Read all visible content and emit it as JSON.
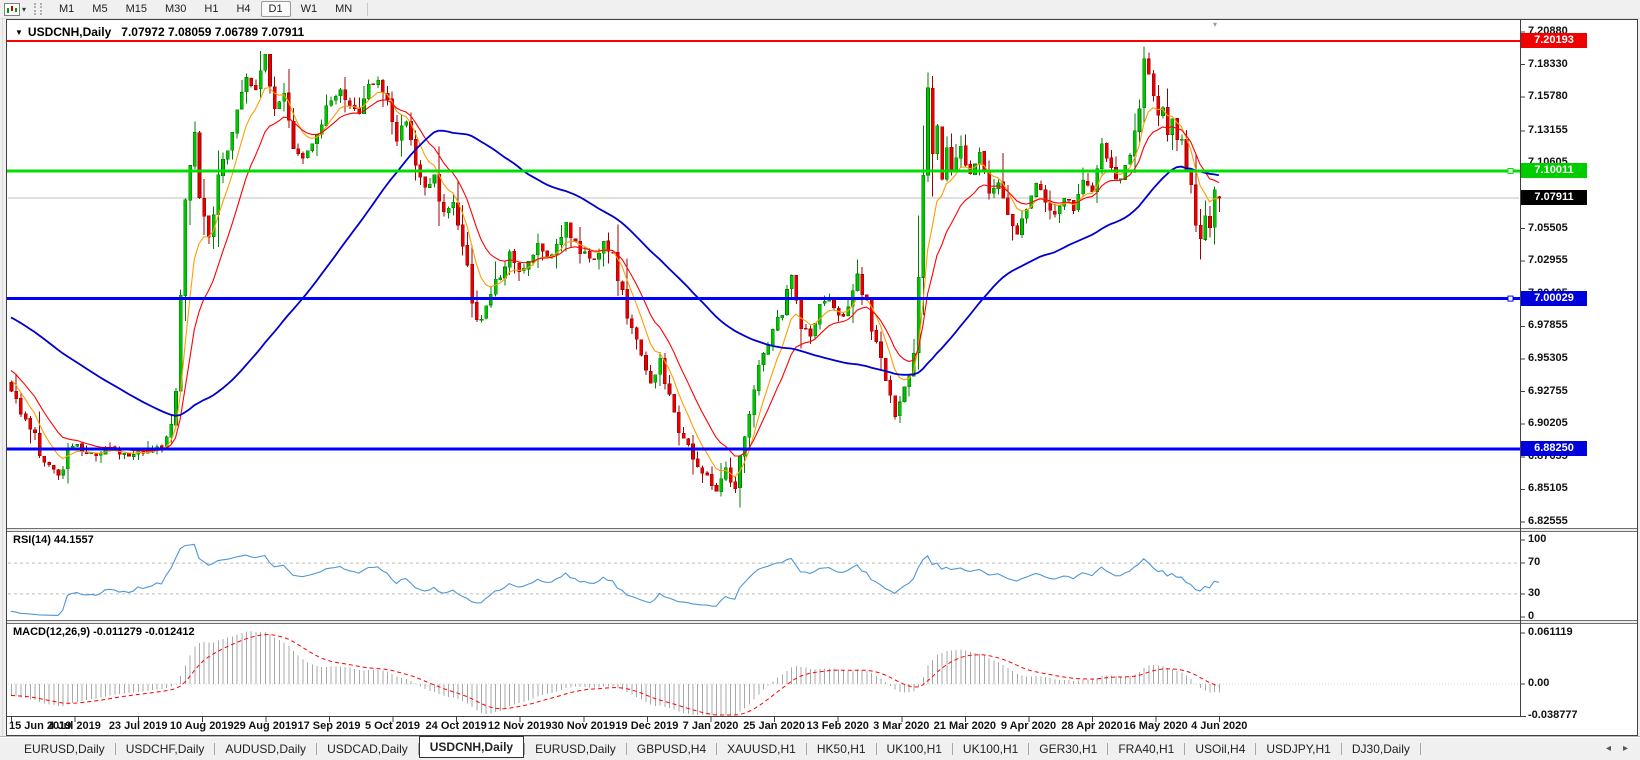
{
  "toolbar": {
    "timeframes": [
      "M1",
      "M5",
      "M15",
      "M30",
      "H1",
      "H4",
      "D1",
      "W1",
      "MN"
    ],
    "active_timeframe": "D1"
  },
  "window": {
    "title_symbol": "USDCNH,Daily",
    "title_quote": "7.07972 7.08059 7.06789 7.07911"
  },
  "indicators": {
    "rsi_label": "RSI(14) 44.1557",
    "macd_label": "MACD(12,26,9) -0.011279 -0.012412",
    "rsi_axis": [
      {
        "v": 100,
        "label": "100"
      },
      {
        "v": 70,
        "label": "70"
      },
      {
        "v": 30,
        "label": "30"
      },
      {
        "v": 0,
        "label": "0"
      }
    ],
    "rsi_dashed_levels": [
      70,
      30
    ],
    "macd_axis": [
      {
        "v": 0.061119,
        "label": "0.061119"
      },
      {
        "v": 0,
        "label": "0.00"
      },
      {
        "v": -0.038777,
        "label": "-0.038777"
      }
    ]
  },
  "price_axis_labels": [
    "7.20880",
    "7.18330",
    "7.15780",
    "7.13155",
    "7.10605",
    "7.05505",
    "7.02955",
    "7.00405",
    "6.97855",
    "6.95305",
    "6.92755",
    "6.90205",
    "6.87655",
    "6.85105",
    "6.82555"
  ],
  "hlines": [
    {
      "price": 7.07911,
      "label": "7.07911",
      "color": "#c0c0c0",
      "width": 1,
      "badge_bg": "#000000",
      "badge_fg": "#ffffff",
      "handle": false,
      "current": true
    },
    {
      "price": 7.20193,
      "label": "7.20193",
      "color": "#ff0000",
      "width": 2,
      "badge_bg": "#f00000",
      "badge_fg": "#ffffff",
      "handle": false,
      "current": false
    },
    {
      "price": 7.10011,
      "label": "7.10011",
      "color": "#00dd00",
      "width": 3,
      "badge_bg": "#00cc00",
      "badge_fg": "#ffffff",
      "handle": true,
      "current": false
    },
    {
      "price": 7.00029,
      "label": "7.00029",
      "color": "#0000ff",
      "width": 3,
      "badge_bg": "#0000dd",
      "badge_fg": "#ffffff",
      "handle": true,
      "current": false
    },
    {
      "price": 6.8825,
      "label": "6.88250",
      "color": "#0000ff",
      "width": 3,
      "badge_bg": "#0000dd",
      "badge_fg": "#ffffff",
      "handle": false,
      "current": false
    }
  ],
  "dates": [
    "15 Jun 2019",
    "4 Jul 2019",
    "23 Jul 2019",
    "10 Aug 2019",
    "29 Aug 2019",
    "17 Sep 2019",
    "5 Oct 2019",
    "24 Oct 2019",
    "12 Nov 2019",
    "30 Nov 2019",
    "19 Dec 2019",
    "7 Jan 2020",
    "25 Jan 2020",
    "13 Feb 2020",
    "3 Mar 2020",
    "21 Mar 2020",
    "9 Apr 2020",
    "28 Apr 2020",
    "16 May 2020",
    "4 Jun 2020"
  ],
  "tabs": {
    "items": [
      "EURUSD,Daily",
      "USDCHF,Daily",
      "AUDUSD,Daily",
      "USDCAD,Daily",
      "USDCNH,Daily",
      "EURUSD,Daily",
      "GBPUSD,H4",
      "XAUUSD,H1",
      "HK50,H1",
      "UK100,H1",
      "UK100,H1",
      "GER30,H1",
      "FRA40,H1",
      "USOil,H4",
      "USDJPY,H1",
      "DJ30,Daily"
    ],
    "active_index": 4
  },
  "colors": {
    "bull_fill": "#00c400",
    "bull_border": "#008000",
    "bear_fill": "#e80000",
    "bear_border": "#a00000",
    "ma_fast": "#ff9d00",
    "ma_mid": "#ff0000",
    "ma_slow": "#0000cc",
    "rsi_line": "#4f97d6",
    "level_dash": "#bcbcbc",
    "macd_hist": "#a8a8a8",
    "macd_signal": "#ff0000",
    "axis_line": "#404040"
  },
  "chart_data": {
    "type": "candlestick",
    "symbol": "USDCNH",
    "period": "Daily",
    "last_ohlc": {
      "open": 7.07972,
      "high": 7.08059,
      "low": 7.06789,
      "close": 7.07911
    },
    "prehistory": [
      [
        -60,
        7.045
      ],
      [
        -45,
        7.02
      ],
      [
        -30,
        6.995
      ],
      [
        -15,
        6.96
      ],
      [
        -5,
        6.942
      ]
    ],
    "close_anchors": [
      [
        0,
        6.928
      ],
      [
        4,
        6.9
      ],
      [
        7,
        6.872
      ],
      [
        10,
        6.862
      ],
      [
        13,
        6.888
      ],
      [
        17,
        6.878
      ],
      [
        21,
        6.884
      ],
      [
        25,
        6.877
      ],
      [
        29,
        6.883
      ],
      [
        33,
        6.886
      ],
      [
        35,
        6.93
      ],
      [
        36,
        7.0
      ],
      [
        37,
        7.06
      ],
      [
        38,
        7.095
      ],
      [
        39,
        7.13
      ],
      [
        40,
        7.075
      ],
      [
        42,
        7.045
      ],
      [
        44,
        7.09
      ],
      [
        46,
        7.12
      ],
      [
        48,
        7.155
      ],
      [
        50,
        7.175
      ],
      [
        52,
        7.165
      ],
      [
        54,
        7.19
      ],
      [
        56,
        7.15
      ],
      [
        58,
        7.165
      ],
      [
        60,
        7.125
      ],
      [
        62,
        7.11
      ],
      [
        64,
        7.125
      ],
      [
        66,
        7.14
      ],
      [
        68,
        7.155
      ],
      [
        70,
        7.165
      ],
      [
        72,
        7.15
      ],
      [
        74,
        7.145
      ],
      [
        76,
        7.165
      ],
      [
        78,
        7.17
      ],
      [
        80,
        7.15
      ],
      [
        82,
        7.125
      ],
      [
        84,
        7.14
      ],
      [
        86,
        7.105
      ],
      [
        88,
        7.085
      ],
      [
        90,
        7.095
      ],
      [
        92,
        7.065
      ],
      [
        94,
        7.075
      ],
      [
        96,
        7.05
      ],
      [
        98,
        6.99
      ],
      [
        100,
        6.985
      ],
      [
        102,
        7.005
      ],
      [
        104,
        7.02
      ],
      [
        106,
        7.035
      ],
      [
        108,
        7.02
      ],
      [
        110,
        7.028
      ],
      [
        112,
        7.042
      ],
      [
        114,
        7.032
      ],
      [
        116,
        7.04
      ],
      [
        118,
        7.058
      ],
      [
        120,
        7.042
      ],
      [
        122,
        7.036
      ],
      [
        124,
        7.03
      ],
      [
        126,
        7.046
      ],
      [
        128,
        7.03
      ],
      [
        130,
        7.0
      ],
      [
        132,
        6.976
      ],
      [
        134,
        6.962
      ],
      [
        136,
        6.932
      ],
      [
        138,
        6.955
      ],
      [
        140,
        6.92
      ],
      [
        142,
        6.9
      ],
      [
        144,
        6.886
      ],
      [
        146,
        6.87
      ],
      [
        148,
        6.862
      ],
      [
        150,
        6.848
      ],
      [
        152,
        6.868
      ],
      [
        154,
        6.852
      ],
      [
        156,
        6.9
      ],
      [
        158,
        6.93
      ],
      [
        160,
        6.958
      ],
      [
        162,
        6.974
      ],
      [
        164,
        6.992
      ],
      [
        166,
        7.016
      ],
      [
        168,
        6.982
      ],
      [
        170,
        6.972
      ],
      [
        172,
        6.996
      ],
      [
        174,
        7.002
      ],
      [
        176,
        6.986
      ],
      [
        178,
        6.992
      ],
      [
        180,
        7.02
      ],
      [
        182,
        6.992
      ],
      [
        184,
        6.962
      ],
      [
        186,
        6.932
      ],
      [
        188,
        6.908
      ],
      [
        190,
        6.93
      ],
      [
        192,
        6.955
      ],
      [
        193,
        7.01
      ],
      [
        194,
        7.09
      ],
      [
        195,
        7.158
      ],
      [
        196,
        7.112
      ],
      [
        197,
        7.13
      ],
      [
        198,
        7.092
      ],
      [
        199,
        7.118
      ],
      [
        200,
        7.1
      ],
      [
        202,
        7.118
      ],
      [
        204,
        7.096
      ],
      [
        206,
        7.114
      ],
      [
        208,
        7.082
      ],
      [
        210,
        7.094
      ],
      [
        212,
        7.062
      ],
      [
        214,
        7.052
      ],
      [
        216,
        7.072
      ],
      [
        218,
        7.088
      ],
      [
        220,
        7.078
      ],
      [
        222,
        7.066
      ],
      [
        224,
        7.08
      ],
      [
        226,
        7.072
      ],
      [
        228,
        7.09
      ],
      [
        230,
        7.082
      ],
      [
        232,
        7.118
      ],
      [
        234,
        7.1
      ],
      [
        236,
        7.092
      ],
      [
        238,
        7.112
      ],
      [
        240,
        7.152
      ],
      [
        241,
        7.188
      ],
      [
        242,
        7.175
      ],
      [
        243,
        7.162
      ],
      [
        244,
        7.142
      ],
      [
        245,
        7.15
      ],
      [
        246,
        7.132
      ],
      [
        247,
        7.144
      ],
      [
        248,
        7.122
      ],
      [
        249,
        7.13
      ],
      [
        250,
        7.1
      ],
      [
        251,
        7.082
      ],
      [
        252,
        7.062
      ],
      [
        253,
        7.047
      ],
      [
        254,
        7.068
      ],
      [
        255,
        7.058
      ],
      [
        256,
        7.084
      ],
      [
        257,
        7.079
      ]
    ]
  }
}
